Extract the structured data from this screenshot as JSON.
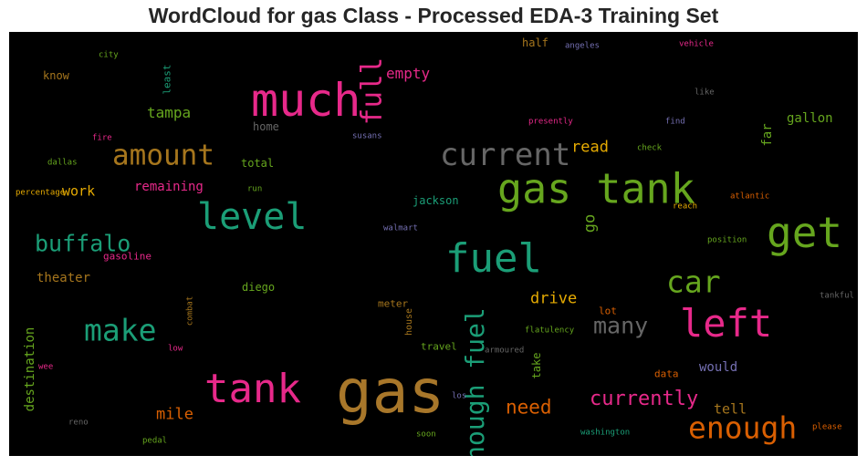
{
  "title": "WordCloud for gas Class - Processed EDA-3 Training Set",
  "words": [
    {
      "text": "gas",
      "color": "#a8772a"
    },
    {
      "text": "much",
      "color": "#e7298a"
    },
    {
      "text": "gas tank",
      "color": "#66a61e"
    },
    {
      "text": "tank",
      "color": "#e7298a"
    },
    {
      "text": "fuel",
      "color": "#1b9e77"
    },
    {
      "text": "get",
      "color": "#66a61e"
    },
    {
      "text": "level",
      "color": "#1b9e77"
    },
    {
      "text": "left",
      "color": "#e7298a"
    },
    {
      "text": "current",
      "color": "#666666"
    },
    {
      "text": "amount",
      "color": "#a6761d"
    },
    {
      "text": "enough",
      "color": "#d95f02"
    },
    {
      "text": "make",
      "color": "#1b9e77"
    },
    {
      "text": "car",
      "color": "#66a61e"
    },
    {
      "text": "full",
      "color": "#e7298a"
    },
    {
      "text": "enough fuel",
      "color": "#1b9e77"
    },
    {
      "text": "buffalo",
      "color": "#1b9e77"
    },
    {
      "text": "many",
      "color": "#666666"
    },
    {
      "text": "currently",
      "color": "#e7298a"
    },
    {
      "text": "need",
      "color": "#d95f02"
    },
    {
      "text": "empty",
      "color": "#e7298a"
    },
    {
      "text": "read",
      "color": "#e6ab02"
    },
    {
      "text": "drive",
      "color": "#e6ab02"
    },
    {
      "text": "tampa",
      "color": "#66a61e"
    },
    {
      "text": "mile",
      "color": "#d95f02"
    },
    {
      "text": "work",
      "color": "#e6ab02"
    },
    {
      "text": "go",
      "color": "#66a61e"
    },
    {
      "text": "tell",
      "color": "#a6761d"
    },
    {
      "text": "would",
      "color": "#7570b3"
    },
    {
      "text": "gallon",
      "color": "#66a61e"
    },
    {
      "text": "remaining",
      "color": "#e7298a"
    },
    {
      "text": "destination",
      "color": "#66a61e"
    },
    {
      "text": "theater",
      "color": "#a6761d"
    },
    {
      "text": "far",
      "color": "#66a61e"
    },
    {
      "text": "half",
      "color": "#a6761d"
    },
    {
      "text": "jackson",
      "color": "#1b9e77"
    },
    {
      "text": "total",
      "color": "#66a61e"
    },
    {
      "text": "home",
      "color": "#666666"
    },
    {
      "text": "diego",
      "color": "#66a61e"
    },
    {
      "text": "know",
      "color": "#a6761d"
    },
    {
      "text": "least",
      "color": "#1b9e77"
    },
    {
      "text": "gasoline",
      "color": "#e7298a"
    },
    {
      "text": "take",
      "color": "#66a61e"
    },
    {
      "text": "travel",
      "color": "#66a61e"
    },
    {
      "text": "meter",
      "color": "#a6761d"
    },
    {
      "text": "lot",
      "color": "#d95f02"
    },
    {
      "text": "data",
      "color": "#d95f02"
    },
    {
      "text": "house",
      "color": "#a6761d"
    },
    {
      "text": "city",
      "color": "#66a61e"
    },
    {
      "text": "angeles",
      "color": "#7570b3"
    },
    {
      "text": "vehicle",
      "color": "#e7298a"
    },
    {
      "text": "like",
      "color": "#666666"
    },
    {
      "text": "presently",
      "color": "#e7298a"
    },
    {
      "text": "find",
      "color": "#7570b3"
    },
    {
      "text": "fire",
      "color": "#e7298a"
    },
    {
      "text": "susans",
      "color": "#7570b3"
    },
    {
      "text": "check",
      "color": "#66a61e"
    },
    {
      "text": "dallas",
      "color": "#66a61e"
    },
    {
      "text": "run",
      "color": "#66a61e"
    },
    {
      "text": "percentage",
      "color": "#e6ab02"
    },
    {
      "text": "atlantic",
      "color": "#d95f02"
    },
    {
      "text": "reach",
      "color": "#e6ab02"
    },
    {
      "text": "walmart",
      "color": "#7570b3"
    },
    {
      "text": "position",
      "color": "#66a61e"
    },
    {
      "text": "combat",
      "color": "#a6761d"
    },
    {
      "text": "tankful",
      "color": "#666666"
    },
    {
      "text": "flatulency",
      "color": "#66a61e"
    },
    {
      "text": "armoured",
      "color": "#666666"
    },
    {
      "text": "low",
      "color": "#e7298a"
    },
    {
      "text": "wee",
      "color": "#e7298a"
    },
    {
      "text": "los",
      "color": "#7570b3"
    },
    {
      "text": "reno",
      "color": "#666666"
    },
    {
      "text": "pedal",
      "color": "#66a61e"
    },
    {
      "text": "soon",
      "color": "#66a61e"
    },
    {
      "text": "washington",
      "color": "#1b9e77"
    },
    {
      "text": "please",
      "color": "#d95f02"
    }
  ]
}
